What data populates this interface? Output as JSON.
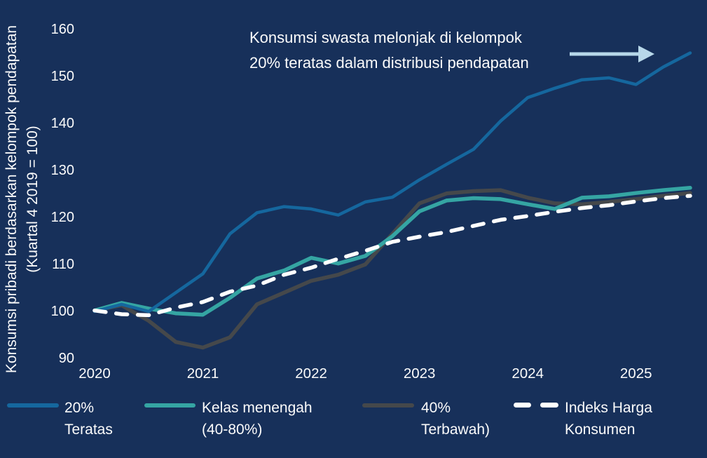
{
  "colors": {
    "background": "#17305A",
    "text": "#FBFBFB",
    "arrow": "#B7D7E9",
    "series_top20": "#15679E",
    "series_middle": "#35A5A3",
    "series_bottom40": "#45484B",
    "series_cpi": "#FFFFFF"
  },
  "chart_data": {
    "type": "line",
    "title_annotation": {
      "line1": "Konsumsi swasta melonjak di kelompok",
      "line2": "20% teratas dalam distribusi pendapatan",
      "arrow_direction": "right"
    },
    "y_axis": {
      "label_line1": "Konsumsi pribadi berdasarkan kelompok pendapatan",
      "label_line2": "(Kuartal 4 2019 = 100)",
      "ticks": [
        160,
        150,
        140,
        130,
        120,
        110,
        100,
        90
      ]
    },
    "x_axis": {
      "tick_labels": [
        "2020",
        "2021",
        "2022",
        "2023",
        "2024",
        "2025"
      ]
    },
    "x": [
      "2020Q1",
      "2020Q2",
      "2020Q3",
      "2020Q4",
      "2021Q1",
      "2021Q2",
      "2021Q3",
      "2021Q4",
      "2022Q1",
      "2022Q2",
      "2022Q3",
      "2022Q4",
      "2023Q1",
      "2023Q2",
      "2023Q3",
      "2023Q4",
      "2024Q1",
      "2024Q2",
      "2024Q3",
      "2024Q4",
      "2025Q1",
      "2025Q2",
      "2025Q3"
    ],
    "ylim": [
      88,
      162
    ],
    "grid": false,
    "legend_position": "bottom",
    "series": [
      {
        "id": "top20",
        "name": "20% Teratas",
        "legend_label_line1": "20%",
        "legend_label_line2": "Teratas",
        "color": "#15679E",
        "style": "solid",
        "values": [
          100,
          101.5,
          100,
          104,
          108,
          116.5,
          121,
          122.3,
          121.8,
          120.5,
          123.3,
          124.3,
          128,
          131.3,
          134.5,
          140.5,
          145.5,
          147.5,
          149.3,
          149.7,
          148.3,
          152,
          155
        ]
      },
      {
        "id": "middle",
        "name": "Kelas menengah (40-80%)",
        "legend_label_line1": "Kelas menengah",
        "legend_label_line2": "(40-80%)",
        "color": "#35A5A3",
        "style": "solid",
        "values": [
          100.2,
          101.8,
          100.6,
          99.6,
          99.3,
          102.9,
          107,
          108.7,
          111.4,
          110.2,
          111.8,
          116,
          121.3,
          123.6,
          124.1,
          123.9,
          122.8,
          121.8,
          124.2,
          124.5,
          125.2,
          125.8,
          126.3
        ]
      },
      {
        "id": "bottom40",
        "name": "40% Terbawah)",
        "legend_label_line1": "40%",
        "legend_label_line2": "Terbawah)",
        "color": "#45484B",
        "style": "solid",
        "values": [
          100.2,
          101.3,
          98,
          93.5,
          92.3,
          94.5,
          101.5,
          104,
          106.5,
          107.8,
          110,
          116.5,
          123,
          125.1,
          125.6,
          125.8,
          124.2,
          123,
          122.8,
          123.3,
          123.9,
          124.6,
          125.2
        ]
      },
      {
        "id": "cpi",
        "name": "Indeks Harga Konsumen",
        "legend_label_line1": "Indeks Harga",
        "legend_label_line2": "Konsumen",
        "color": "#FFFFFF",
        "style": "dashed",
        "values": [
          100.2,
          99.4,
          99.2,
          100.8,
          102,
          104.2,
          105.5,
          107.8,
          109.3,
          111.2,
          112.9,
          114.8,
          115.9,
          116.9,
          118.2,
          119.5,
          120.3,
          121.2,
          122,
          122.6,
          123.4,
          124.1,
          124.6
        ]
      }
    ]
  }
}
